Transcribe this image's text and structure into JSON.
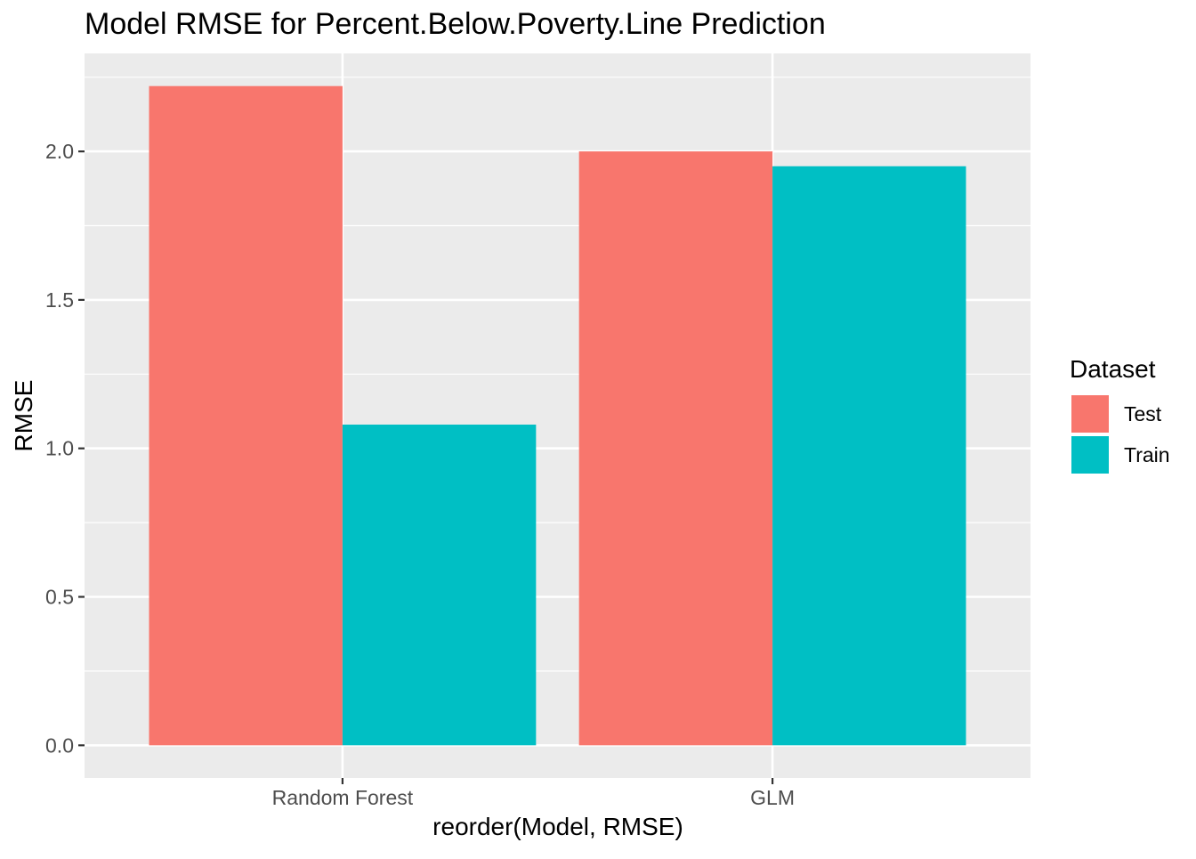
{
  "chart_data": {
    "type": "bar",
    "title": "Model RMSE for Percent.Below.Poverty.Line Prediction",
    "xlabel": "reorder(Model, RMSE)",
    "ylabel": "RMSE",
    "categories": [
      "Random Forest",
      "GLM"
    ],
    "series": [
      {
        "name": "Test",
        "color": "#F8766D",
        "values": [
          2.22,
          2.0
        ]
      },
      {
        "name": "Train",
        "color": "#00BFC4",
        "values": [
          1.08,
          1.95
        ]
      }
    ],
    "ylim": [
      -0.11,
      2.33
    ],
    "yticks": [
      0.0,
      0.5,
      1.0,
      1.5,
      2.0
    ],
    "ytick_labels": [
      "0.0",
      "0.5",
      "1.0",
      "1.5",
      "2.0"
    ],
    "grid": true,
    "legend": {
      "title": "Dataset",
      "placement": "right"
    },
    "colors": {
      "panel_bg": "#EBEBEB",
      "grid": "#FFFFFF",
      "text": "#000000",
      "tick_text": "#4D4D4D"
    }
  }
}
